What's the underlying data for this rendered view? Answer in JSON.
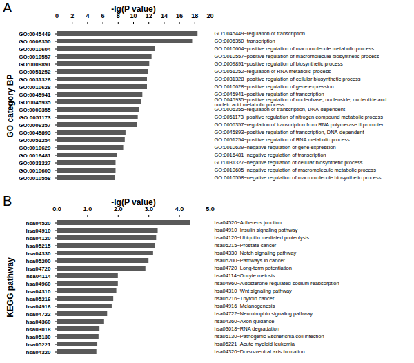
{
  "chart_data": [
    {
      "type": "bar",
      "title": "A",
      "orientation": "horizontal",
      "color": "#595959",
      "x_label": "-lg(P value)",
      "y_label": "GO category BP",
      "xlim": [
        0,
        20
      ],
      "xticks": [
        0,
        2,
        4,
        6,
        8,
        10,
        12,
        14,
        16,
        18,
        20
      ],
      "categories": [
        "GO:0045449",
        "GO:0006350",
        "GO:0010604",
        "GO:0010557",
        "GO:0009891",
        "GO:0051252",
        "GO:0031328",
        "GO:0010628",
        "GO:0045941",
        "GO:0045935",
        "GO:0006355",
        "GO:0051173",
        "GO:0006357",
        "GO:0045893",
        "GO:0051254",
        "GO:0010629",
        "GO:0016481",
        "GO:0031327",
        "GO:0010605",
        "GO:0010558"
      ],
      "values": [
        18.4,
        17.7,
        12.8,
        12.4,
        12.1,
        11.9,
        11.8,
        11.8,
        11.2,
        11.0,
        10.8,
        10.6,
        10.5,
        9.0,
        8.9,
        8.7,
        7.9,
        7.7,
        7.7,
        7.6
      ],
      "annotations": [
        "GO:0045449~regulation of transcription",
        "GO:0006350~transcription",
        "GO:0010604~positive regulation of macromolecule metabolic process",
        "GO:0010557~positive regulation of macromolecule biosynthetic process",
        "GO:0009891~positive regulation of biosynthetic process",
        "GO:0051252~regulation of RNA metabolic process",
        "GO:0031328~positive regulation of cellular biosynthetic process",
        "GO:0010628~positive regulation of gene expression",
        "GO:0045941~positive regulation of transcription",
        "GO:0045935~positive regulation of nucleobase, nucleoside, nucleotide and nucleic acid metabolic process",
        "GO:0006355~regulation of transcription, DNA-dependent",
        "GO:0051173~positive regulation of nitrogen compound metabolic process",
        "GO:0006357~regulation of transcription from RNA polymerase II promoter",
        "GO:0045893~positive regulation of transcription, DNA-dependent",
        "GO:0051254~positive regulation of RNA metabolic process",
        "GO:0010629~negative regulation of gene expression",
        "GO:0016481~negative regulation of transcription",
        "GO:0031327~negative regulation of cellular biosynthetic process",
        "GO:0010605~negative regulation of macromolecule metabolic process",
        "GO:0010558~negative regulation of macromolecule biosynthetic process"
      ]
    },
    {
      "type": "bar",
      "title": "B",
      "orientation": "horizontal",
      "color": "#595959",
      "x_label": "-lg(P value)",
      "y_label": "KEGG pathway",
      "xlim": [
        0,
        5
      ],
      "xticks": [
        0,
        1,
        2,
        3,
        4,
        5
      ],
      "categories": [
        "hsa04520",
        "hsa04910",
        "hsa04120",
        "hsa05215",
        "hsa04330",
        "hsa05200",
        "hsa04720",
        "hsa04114",
        "hsa04960",
        "hsa04310",
        "hsa05216",
        "hsa04916",
        "hsa04722",
        "hsa04360",
        "hsa03018",
        "hsa05130",
        "hsa05221",
        "hsa04320"
      ],
      "values": [
        4.35,
        3.3,
        3.25,
        3.2,
        3.15,
        3.0,
        2.9,
        2.0,
        2.0,
        1.95,
        1.85,
        1.8,
        1.65,
        1.55,
        1.4,
        1.37,
        1.33,
        1.3
      ],
      "annotations": [
        "hsa04520~Adherens junction",
        "hsa04910~Insulin signaling pathway",
        "hsa04120~Ubiquitin mediated proteolysis",
        "hsa05215~Prostate cancer",
        "hsa04330~Notch signaling pathway",
        "hsa05200~Pathways in cancer",
        "hsa04720~Long-term potentiation",
        "hsa04114~Oocyte meiosis",
        "hsa04960~Aldosterone-regulated sodium reabsorption",
        "hsa04310~Wnt signaling pathway",
        "hsa05216~Thyroid cancer",
        "hsa04916~Melanogenesis",
        "hsa04722~Neurotrophin signaling pathway",
        "hsa04360~Axon guidance",
        "hsa03018~RNA degradation",
        "hsa05130~Pathogenic Escherichia coli infection",
        "hsa05221~Acute myeloid leukemia",
        "hsa04320~Dorso-ventral axis formation"
      ]
    }
  ]
}
